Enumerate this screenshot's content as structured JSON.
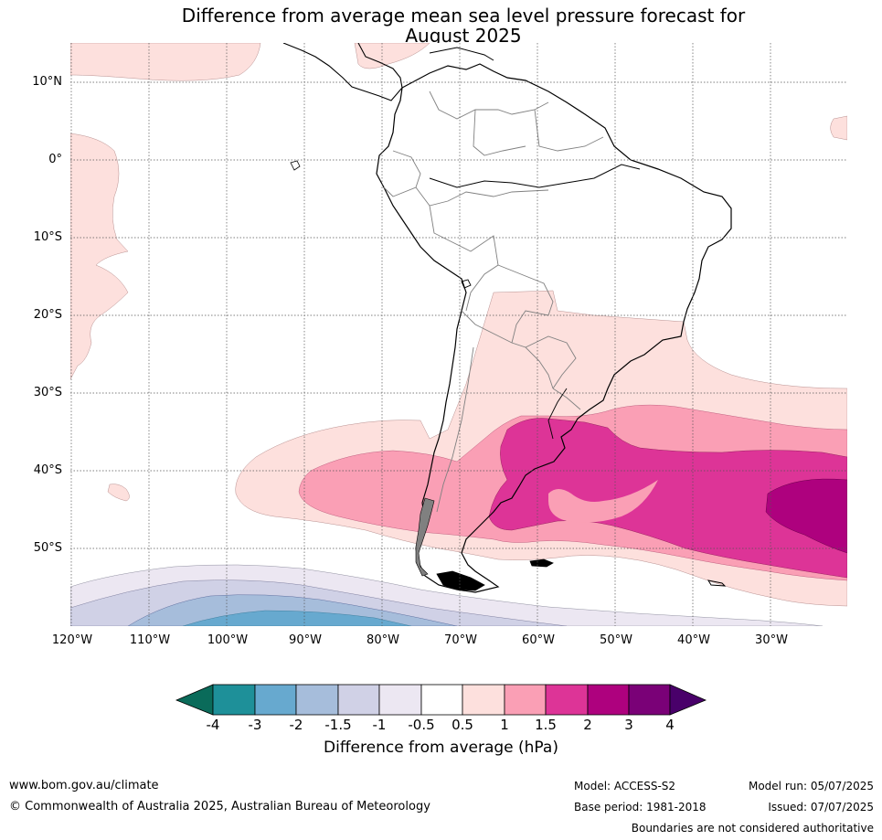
{
  "title_line1": "Difference from average mean sea level pressure forecast for",
  "title_line2": "August 2025",
  "lat_labels": [
    "10°N",
    "0°",
    "10°S",
    "20°S",
    "30°S",
    "40°S",
    "50°S"
  ],
  "lon_labels": [
    "120°W",
    "110°W",
    "100°W",
    "90°W",
    "80°W",
    "70°W",
    "60°W",
    "50°W",
    "40°W",
    "30°W"
  ],
  "colorbar": {
    "label": "Difference from average (hPa)",
    "ticks": [
      "-4",
      "-3",
      "-2",
      "-1.5",
      "-1",
      "-0.5",
      "0.5",
      "1",
      "1.5",
      "2",
      "3",
      "4"
    ],
    "colors": {
      "below_-4": "#0a6b5a",
      "-4_-3": "#1e9099",
      "-3_-2": "#67a9cf",
      "-2_-1.5": "#a6bddb",
      "-1.5_-1": "#d0d1e6",
      "-1_-0.5": "#ece7f2",
      "-0.5_0.5": "#ffffff",
      "0.5_1": "#fde0dd",
      "1_1.5": "#fa9fb5",
      "1.5_2": "#dd3497",
      "2_3": "#ae017e",
      "3_4": "#7a0177",
      "above_4": "#49006a"
    }
  },
  "footer": {
    "website": "www.bom.gov.au/climate",
    "copyright": "© Commonwealth of Australia 2025, Australian Bureau of Meteorology",
    "model": "Model: ACCESS-S2",
    "base_period": "Base period: 1981-2018",
    "model_run": "Model run: 05/07/2025",
    "issued": "Issued: 07/07/2025",
    "disclaimer": "Boundaries are not considered authoritative"
  }
}
